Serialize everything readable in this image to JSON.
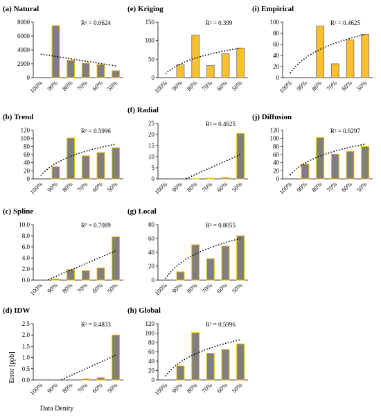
{
  "figure": {
    "xlabel": "Data Denity",
    "ylabel": "Error [ppb]"
  },
  "chart_data": [
    {
      "id": "natural",
      "type": "bar",
      "title": "(a) Natural",
      "categories": [
        "100%",
        "90%",
        "80%",
        "70%",
        "60%",
        "50%"
      ],
      "values": [
        0,
        7500,
        2500,
        2100,
        1900,
        1000
      ],
      "ylim": [
        0,
        8000
      ],
      "yticks": [
        "0",
        "2000",
        "4000",
        "6000",
        "8000"
      ],
      "bar_color": "#7f7f7f",
      "bar_border": "#f2b705",
      "trend": {
        "type": "linear",
        "start": 3400,
        "end": 1700
      },
      "r2_label": "R² = 0.0624"
    },
    {
      "id": "trend",
      "type": "bar",
      "title": "(b) Trend",
      "categories": [
        "100%",
        "90%",
        "80%",
        "70%",
        "60%",
        "50%"
      ],
      "values": [
        0,
        30,
        101,
        57,
        65,
        77
      ],
      "ylim": [
        0,
        120
      ],
      "yticks": [
        "0",
        "20",
        "40",
        "60",
        "80",
        "100",
        "120"
      ],
      "bar_color": "#7f7f7f",
      "bar_border": "#f2b705",
      "trend": {
        "type": "log",
        "start": 8,
        "end": 86
      },
      "r2_label": "R² = 0.5996"
    },
    {
      "id": "spline",
      "type": "bar",
      "title": "(c) Spline",
      "categories": [
        "100%",
        "90%",
        "80%",
        "70%",
        "60%",
        "50%"
      ],
      "values": [
        0,
        0.2,
        1.9,
        1.7,
        2.2,
        7.8
      ],
      "ylim": [
        0,
        10
      ],
      "yticks": [
        "0.0",
        "2.0",
        "4.0",
        "6.0",
        "8.0",
        "10.0"
      ],
      "bar_color": "#7f7f7f",
      "bar_border": "#f2b705",
      "trend": {
        "type": "linear",
        "start": -0.5,
        "end": 5.3
      },
      "r2_label": "R² = 0.7089"
    },
    {
      "id": "idw",
      "type": "bar",
      "title": "(d) IDW",
      "categories": [
        "100%",
        "90%",
        "80%",
        "70%",
        "60%",
        "50%"
      ],
      "values": [
        0,
        0,
        0,
        0.05,
        0.1,
        2.0
      ],
      "ylim": [
        0,
        2.5
      ],
      "yticks": [
        "0.0",
        "0.5",
        "1.0",
        "1.5",
        "2.0",
        "2.5"
      ],
      "bar_color": "#7f7f7f",
      "bar_border": "#f2b705",
      "trend": {
        "type": "linear",
        "start": -0.4,
        "end": 1.1
      },
      "r2_label": "R² = 0.4833"
    },
    {
      "id": "kriging",
      "type": "bar",
      "title": "(e) Kriging",
      "categories": [
        "100%",
        "90%",
        "80%",
        "70%",
        "60%",
        "50%"
      ],
      "values": [
        0,
        35,
        115,
        33,
        65,
        80
      ],
      "ylim": [
        0,
        150
      ],
      "yticks": [
        "0",
        "50",
        "100",
        "150"
      ],
      "bar_color": "#fbc02d",
      "bar_border": "#7f7f7f",
      "trend": {
        "type": "log",
        "start": 10,
        "end": 80
      },
      "r2_label": "R² = 0.399"
    },
    {
      "id": "radial",
      "type": "bar",
      "title": "(f) Radial",
      "categories": [
        "100%",
        "90%",
        "80%",
        "70%",
        "60%",
        "50%"
      ],
      "values": [
        0,
        0,
        0.1,
        0.3,
        0.6,
        20.5
      ],
      "ylim": [
        0,
        25
      ],
      "yticks": [
        "0",
        "5",
        "10",
        "15",
        "20",
        "25"
      ],
      "bar_color": "#7f7f7f",
      "bar_border": "#f2b705",
      "trend": {
        "type": "linear",
        "start": -4,
        "end": 11
      },
      "r2_label": "R² = 0.4625"
    },
    {
      "id": "local",
      "type": "bar",
      "title": "(g) Local",
      "categories": [
        "100%",
        "90%",
        "80%",
        "70%",
        "60%",
        "50%"
      ],
      "values": [
        0,
        12,
        51,
        31,
        49,
        64
      ],
      "ylim": [
        0,
        80
      ],
      "yticks": [
        "0",
        "20",
        "40",
        "60",
        "80"
      ],
      "bar_color": "#7f7f7f",
      "bar_border": "#f2b705",
      "trend": {
        "type": "log",
        "start": 2,
        "end": 60
      },
      "r2_label": "R² = 0.8055"
    },
    {
      "id": "global",
      "type": "bar",
      "title": "(h) Global",
      "categories": [
        "100%",
        "90%",
        "80%",
        "70%",
        "60%",
        "50%"
      ],
      "values": [
        0,
        30,
        101,
        57,
        65,
        77
      ],
      "ylim": [
        0,
        120
      ],
      "yticks": [
        "0",
        "20",
        "40",
        "60",
        "80",
        "100",
        "120"
      ],
      "bar_color": "#7f7f7f",
      "bar_border": "#f2b705",
      "trend": {
        "type": "log",
        "start": 8,
        "end": 86
      },
      "r2_label": "R² = 0.5996"
    },
    {
      "id": "empirical",
      "type": "bar",
      "title": "(i) Empirical",
      "categories": [
        "100%",
        "90%",
        "80%",
        "70%",
        "60%",
        "50%"
      ],
      "values": [
        0,
        0,
        93,
        25,
        68,
        78
      ],
      "ylim": [
        0,
        100
      ],
      "yticks": [
        "0",
        "20",
        "40",
        "60",
        "80",
        "100"
      ],
      "bar_color": "#fbc02d",
      "bar_border": "#7f7f7f",
      "trend": {
        "type": "log",
        "start": 8,
        "end": 78
      },
      "r2_label": "R² = 0.4625"
    },
    {
      "id": "diffusion",
      "type": "bar",
      "title": "(j) Diffusion",
      "categories": [
        "100%",
        "90%",
        "80%",
        "70%",
        "60%",
        "50%"
      ],
      "values": [
        0,
        37,
        102,
        61,
        68,
        80
      ],
      "ylim": [
        0,
        120
      ],
      "yticks": [
        "0",
        "20",
        "40",
        "60",
        "80",
        "100",
        "120"
      ],
      "bar_color": "#7f7f7f",
      "bar_border": "#f2b705",
      "trend": {
        "type": "log",
        "start": 10,
        "end": 86
      },
      "r2_label": "R² = 0.6297"
    }
  ]
}
